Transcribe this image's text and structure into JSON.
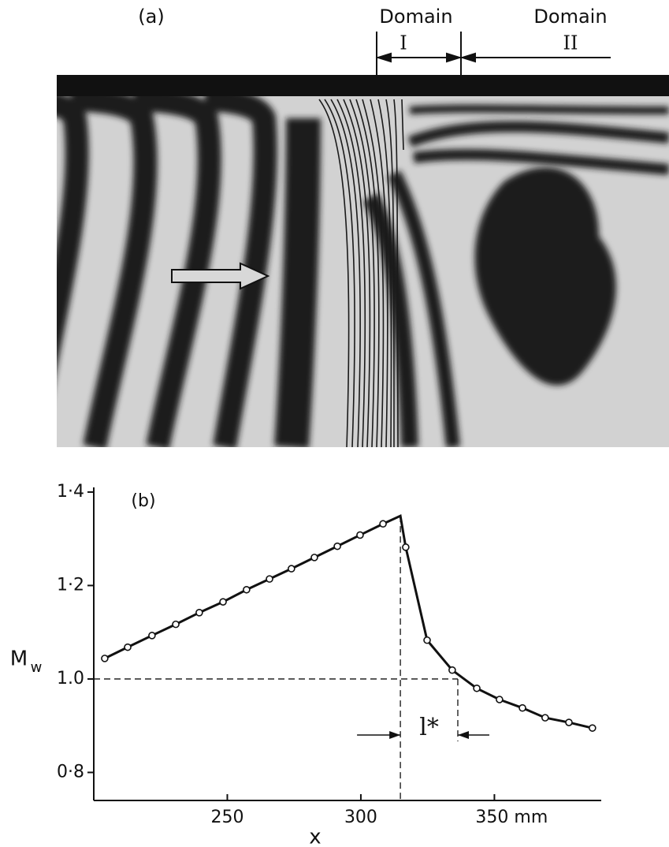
{
  "panel_a": {
    "label": "(a)",
    "domain_1": "Domain",
    "domain_1_number": "I",
    "domain_2": "Domain",
    "domain_2_number": "II"
  },
  "chart_data": {
    "type": "line",
    "panel_label": "(b)",
    "y_label": "M",
    "y_label_subscript": "w",
    "x_label": "x",
    "x": [
      204.1,
      212.7,
      221.8,
      230.7,
      239.5,
      248.4,
      257.2,
      265.8,
      274.0,
      282.6,
      291.2,
      299.7,
      308.3,
      314.8,
      316.8,
      324.8,
      334.2,
      343.4,
      351.9,
      360.5,
      369.0,
      377.9,
      386.7
    ],
    "values": [
      1.044,
      1.068,
      1.093,
      1.117,
      1.142,
      1.165,
      1.191,
      1.214,
      1.236,
      1.26,
      1.284,
      1.308,
      1.332,
      1.349,
      1.282,
      1.083,
      1.019,
      0.98,
      0.956,
      0.938,
      0.917,
      0.907,
      0.895
    ],
    "color": "#111111",
    "xlim": [
      200,
      390
    ],
    "ylim": [
      0.74,
      1.41
    ],
    "xticks": [
      250,
      300,
      {
        "value": 350,
        "label": "350 mm"
      }
    ],
    "yticks": [
      {
        "value": 0.8,
        "label": "0·8"
      },
      {
        "value": 1.0,
        "label": "1.0"
      },
      {
        "value": 1.2,
        "label": "1·2"
      },
      {
        "value": 1.4,
        "label": "1·4"
      }
    ],
    "reference_lines": {
      "y": 1.0,
      "x_start": 314.8,
      "x_end": 336.3
    },
    "annotation": "l*"
  }
}
